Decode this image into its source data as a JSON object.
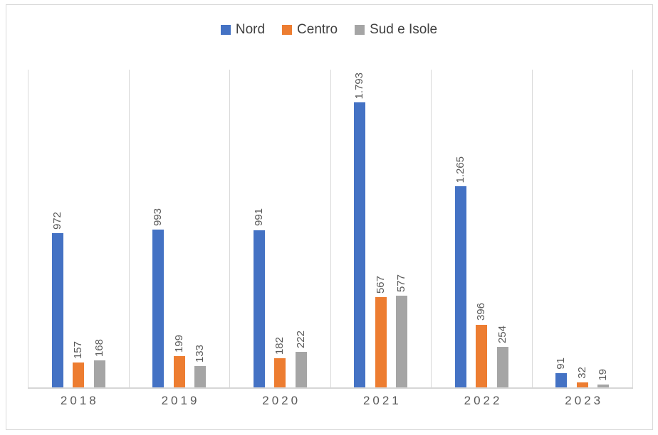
{
  "chart_data": {
    "type": "bar",
    "title": "",
    "xlabel": "",
    "ylabel": "",
    "categories": [
      "2018",
      "2019",
      "2020",
      "2021",
      "2022",
      "2023"
    ],
    "series": [
      {
        "name": "Nord",
        "color": "#4472C4",
        "values": [
          972,
          993,
          991,
          1793,
          1265,
          91
        ],
        "labels": [
          "972",
          "993",
          "991",
          "1.793",
          "1.265",
          "91"
        ]
      },
      {
        "name": "Centro",
        "color": "#ED7D31",
        "values": [
          157,
          199,
          182,
          567,
          396,
          32
        ],
        "labels": [
          "157",
          "199",
          "182",
          "567",
          "396",
          "32"
        ]
      },
      {
        "name": "Sud e Isole",
        "color": "#A5A5A5",
        "values": [
          168,
          133,
          222,
          577,
          254,
          19
        ],
        "labels": [
          "168",
          "133",
          "222",
          "577",
          "254",
          "19"
        ]
      }
    ],
    "ylim": [
      0,
      2000
    ],
    "legend_position": "top",
    "gridlines": "vertical category separators",
    "data_labels": "rotated 90deg above bars",
    "label_number_format": "thousands separator '.'"
  }
}
